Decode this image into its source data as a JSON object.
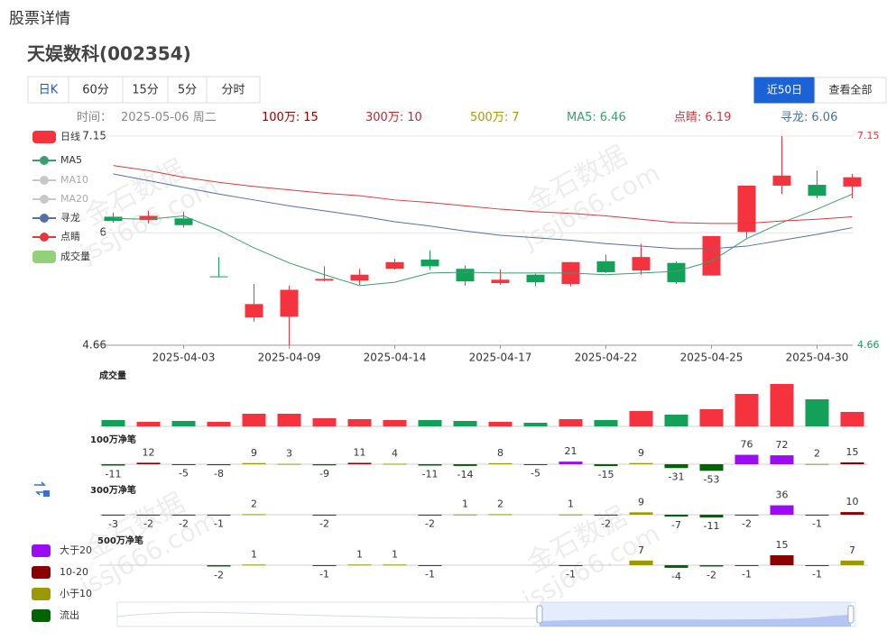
{
  "page_title": "股票详情",
  "stock_title": "天娱数科(002354)",
  "tabs": [
    "日K",
    "60分",
    "15分",
    "5分",
    "分时"
  ],
  "range_buttons": [
    "近50日",
    "查看全部"
  ],
  "watermark": [
    "金石数据",
    "jssj666.com"
  ],
  "info": [
    {
      "label": "时间：",
      "value": "2025-05-06 周二",
      "color": "#888888"
    },
    {
      "label": "100万:",
      "value": 15,
      "color": "#a00000"
    },
    {
      "label": "300万:",
      "value": 10,
      "color": "#c0282d"
    },
    {
      "label": "500万:",
      "value": 7,
      "color": "#a89a00"
    },
    {
      "label": "MA5:",
      "value": 6.46,
      "color": "#3a9e6e"
    },
    {
      "label": "点睛:",
      "value": 6.19,
      "color": "#d8343a"
    },
    {
      "label": "寻龙:",
      "value": 6.06,
      "color": "#4a6fa5"
    }
  ],
  "flow_legend": [
    {
      "name": "大于20",
      "color": "#9b0cf5"
    },
    {
      "name": "10-20",
      "color": "#8b0000"
    },
    {
      "name": "小于10",
      "color": "#9a9a00"
    },
    {
      "name": "流出",
      "color": "#006400"
    }
  ],
  "chart_data": [
    {
      "type": "candlestick",
      "categories": [
        null,
        null,
        "2025-04-03",
        null,
        null,
        "2025-04-09",
        null,
        null,
        "2025-04-14",
        null,
        null,
        "2025-04-17",
        null,
        null,
        "2025-04-22",
        null,
        null,
        "2025-04-25",
        null,
        null,
        "2025-04-30",
        null
      ],
      "open": [
        6.19,
        6.15,
        6.17,
        5.48,
        4.99,
        5.0,
        5.43,
        5.43,
        5.57,
        5.68,
        5.57,
        5.4,
        5.5,
        5.39,
        5.66,
        5.55,
        5.64,
        5.49,
        6.01,
        6.56,
        6.57,
        6.55
      ],
      "close": [
        6.14,
        6.2,
        6.09,
        5.47,
        5.15,
        5.32,
        5.45,
        5.5,
        5.65,
        5.6,
        5.42,
        5.44,
        5.41,
        5.65,
        5.53,
        5.71,
        5.41,
        5.96,
        6.56,
        6.68,
        6.44,
        6.66
      ],
      "high": [
        6.24,
        6.26,
        6.25,
        5.71,
        5.39,
        5.37,
        5.6,
        5.57,
        5.69,
        5.79,
        5.61,
        5.56,
        5.51,
        5.65,
        5.74,
        5.87,
        5.66,
        5.96,
        6.56,
        7.15,
        6.74,
        6.7
      ],
      "low": [
        6.12,
        6.11,
        6.06,
        5.47,
        4.94,
        4.66,
        5.42,
        5.38,
        5.56,
        5.56,
        5.37,
        5.38,
        5.36,
        5.36,
        5.52,
        5.5,
        5.39,
        5.49,
        5.94,
        6.46,
        6.41,
        6.41
      ],
      "up_color": "#f5333f",
      "down_color": "#15a05a",
      "ylim": [
        4.66,
        7.15
      ],
      "yticks": [
        4.66,
        6,
        7.15
      ],
      "grid": true,
      "series": [
        {
          "name": "日线",
          "color": "#f5333f",
          "kind": "candle"
        },
        {
          "name": "MA5",
          "color": "#3a9e6e",
          "values": [
            6.17,
            6.16,
            6.2,
            6.03,
            5.82,
            5.64,
            5.5,
            5.37,
            5.41,
            5.52,
            5.53,
            5.52,
            5.52,
            5.52,
            5.5,
            5.52,
            5.54,
            5.66,
            5.93,
            6.12,
            6.28,
            6.46
          ]
        },
        {
          "name": "MA10",
          "color": "#c8c8c8",
          "visible": false
        },
        {
          "name": "MA20",
          "color": "#c8c8c8",
          "visible": false
        },
        {
          "name": "寻龙",
          "color": "#5570a8",
          "values": [
            6.7,
            6.62,
            6.54,
            6.46,
            6.39,
            6.32,
            6.26,
            6.2,
            6.13,
            6.08,
            6.02,
            5.97,
            5.94,
            5.91,
            5.87,
            5.84,
            5.81,
            5.81,
            5.84,
            5.91,
            5.98,
            6.06
          ]
        },
        {
          "name": "点睛",
          "color": "#e0383c",
          "values": [
            6.8,
            6.74,
            6.66,
            6.6,
            6.55,
            6.51,
            6.47,
            6.44,
            6.39,
            6.36,
            6.32,
            6.28,
            6.25,
            6.23,
            6.2,
            6.16,
            6.12,
            6.11,
            6.11,
            6.14,
            6.16,
            6.19
          ]
        },
        {
          "name": "成交量",
          "color": "#93d07a",
          "kind": "volume"
        }
      ]
    },
    {
      "type": "bar",
      "title": "成交量",
      "ylim": [
        0,
        50
      ],
      "values": [
        7,
        5,
        6,
        5,
        14,
        14,
        9,
        8,
        7,
        7,
        6,
        5,
        4,
        8,
        7,
        17,
        13,
        19,
        36,
        47,
        30,
        16
      ],
      "colors": [
        "#15a05a",
        "#f5333f",
        "#15a05a",
        "#f5333f",
        "#f5333f",
        "#f5333f",
        "#f5333f",
        "#f5333f",
        "#f5333f",
        "#15a05a",
        "#15a05a",
        "#f5333f",
        "#15a05a",
        "#f5333f",
        "#15a05a",
        "#f5333f",
        "#15a05a",
        "#f5333f",
        "#f5333f",
        "#f5333f",
        "#15a05a",
        "#f5333f"
      ]
    },
    {
      "type": "bar",
      "title": "100万净笔",
      "ylim": [
        -80,
        80
      ],
      "show_labels": true,
      "values": [
        -11,
        12,
        -5,
        -8,
        9,
        3,
        -9,
        11,
        4,
        -11,
        -14,
        8,
        -5,
        21,
        -15,
        9,
        -31,
        -53,
        76,
        72,
        2,
        15
      ],
      "colors": [
        "#006400",
        "#8b0000",
        "#006400",
        "#006400",
        "#9a9a00",
        "#9a9a00",
        "#006400",
        "#8b0000",
        "#9a9a00",
        "#006400",
        "#006400",
        "#9a9a00",
        "#006400",
        "#9b0cf5",
        "#006400",
        "#9a9a00",
        "#006400",
        "#006400",
        "#9b0cf5",
        "#9b0cf5",
        "#9a9a00",
        "#8b0000"
      ]
    },
    {
      "type": "bar",
      "title": "300万净笔",
      "ylim": [
        -38,
        38
      ],
      "show_labels": true,
      "values": [
        -3,
        -2,
        -2,
        -1,
        2,
        null,
        -2,
        null,
        null,
        -2,
        1,
        2,
        null,
        1,
        -2,
        9,
        -7,
        -11,
        -2,
        36,
        -1,
        10
      ],
      "colors": [
        "#006400",
        "#006400",
        "#006400",
        "#006400",
        "#9a9a00",
        null,
        "#006400",
        null,
        null,
        "#006400",
        "#9a9a00",
        "#9a9a00",
        null,
        "#9a9a00",
        "#006400",
        "#9a9a00",
        "#006400",
        "#006400",
        "#006400",
        "#9b0cf5",
        "#006400",
        "#8b0000"
      ]
    },
    {
      "type": "bar",
      "title": "500万净笔",
      "ylim": [
        -15,
        15
      ],
      "show_labels": true,
      "values": [
        null,
        null,
        null,
        -2,
        1,
        null,
        -1,
        1,
        1,
        -1,
        null,
        null,
        null,
        -1,
        null,
        7,
        -4,
        -2,
        -1,
        15,
        -1,
        7
      ],
      "colors": [
        null,
        null,
        null,
        "#006400",
        "#9a9a00",
        null,
        "#006400",
        "#9a9a00",
        "#9a9a00",
        "#006400",
        null,
        null,
        null,
        "#006400",
        null,
        "#9a9a00",
        "#006400",
        "#006400",
        "#006400",
        "#8b0000",
        "#006400",
        "#9a9a00"
      ]
    }
  ]
}
